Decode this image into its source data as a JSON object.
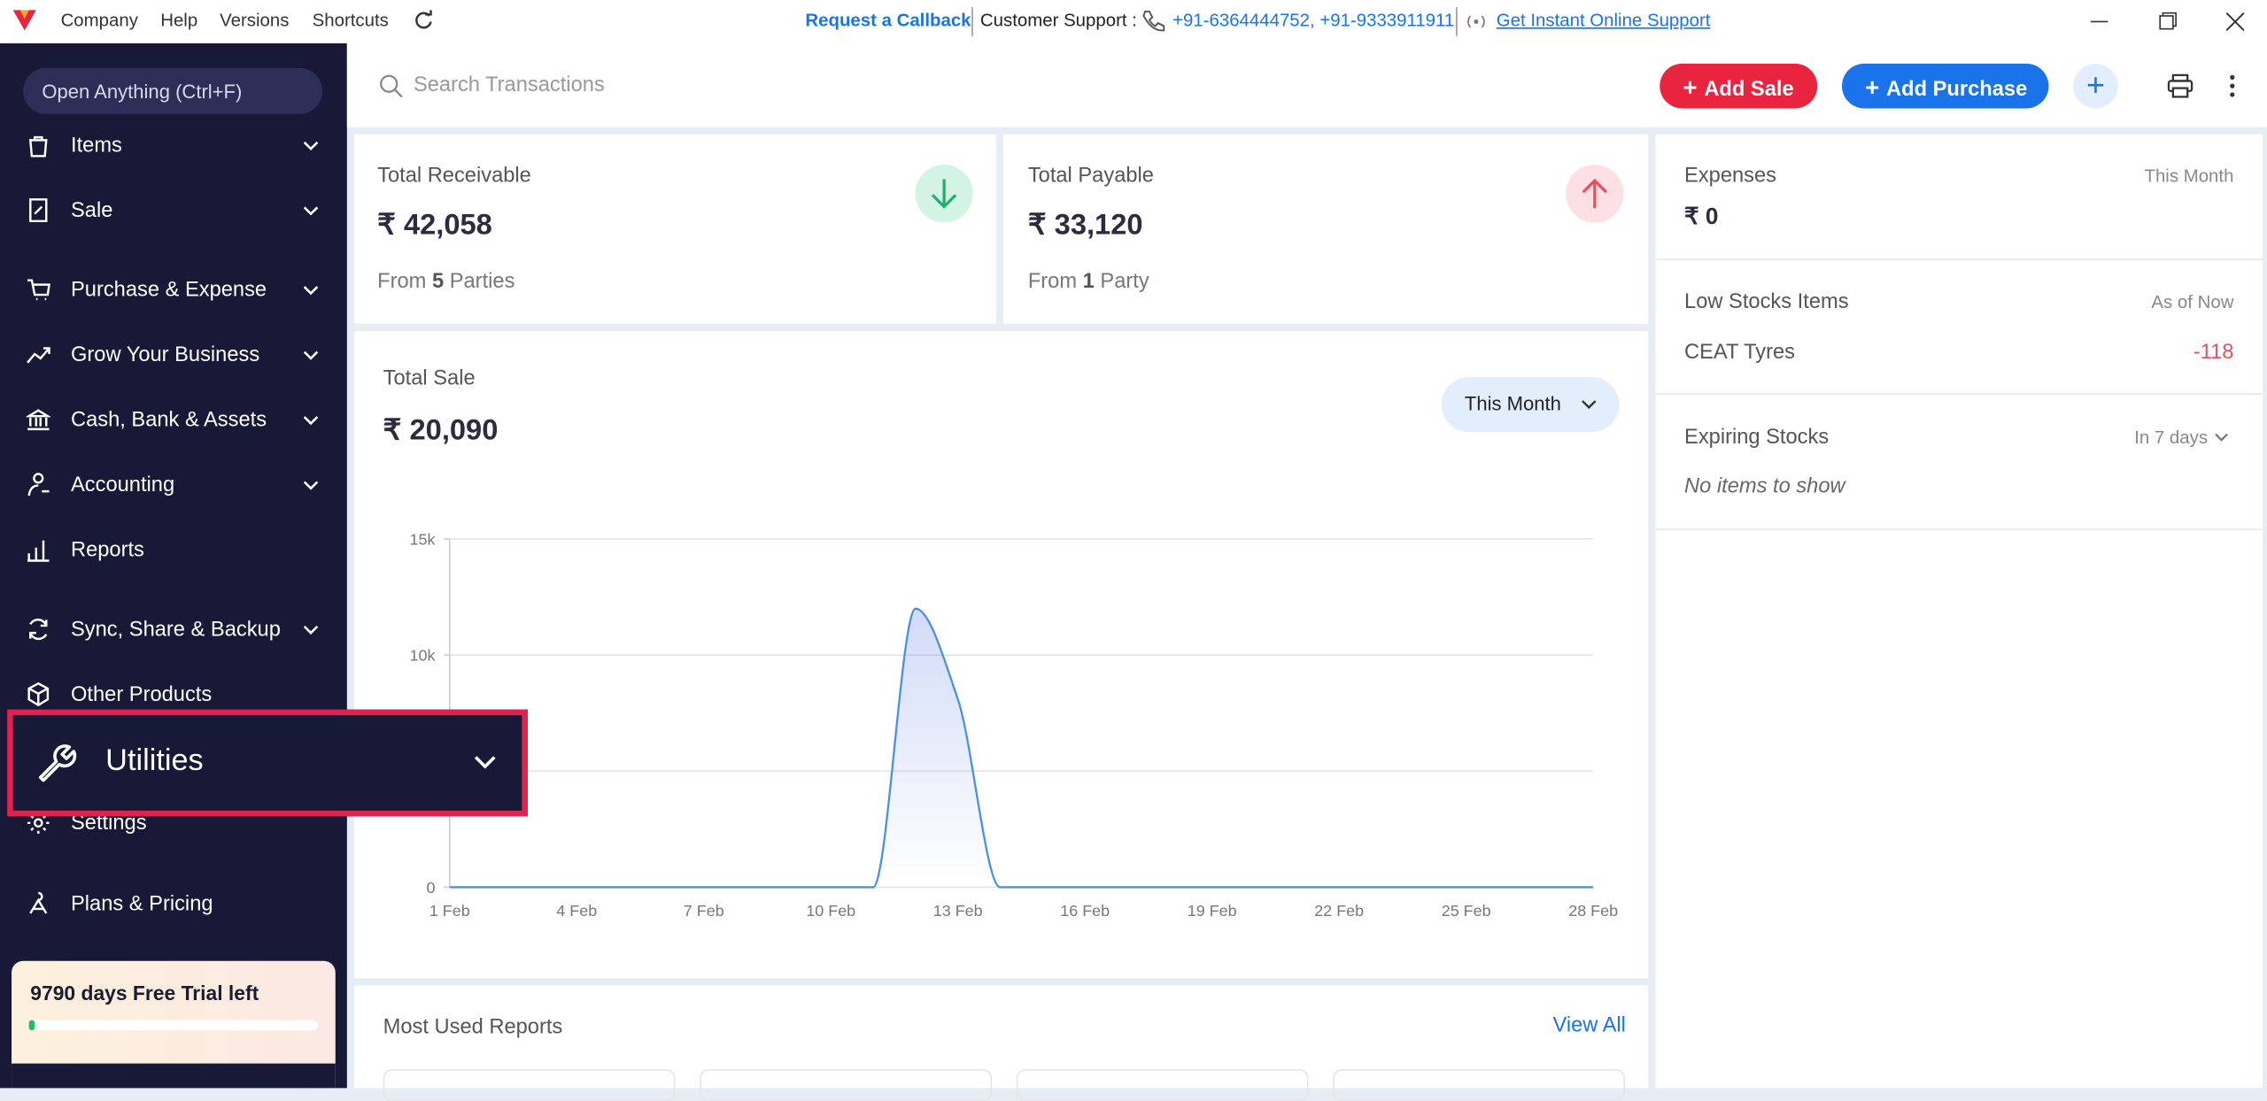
{
  "titlebar": {
    "menu": [
      "Company",
      "Help",
      "Versions",
      "Shortcuts"
    ],
    "callback": "Request a Callback",
    "support_label": "Customer Support :",
    "phones": "+91-6364444752, +91-9333911911",
    "online_support": "Get Instant Online Support"
  },
  "sidebar": {
    "search": "Open Anything (Ctrl+F)",
    "items": [
      "Items",
      "Sale",
      "Purchase & Expense",
      "Grow Your Business",
      "Cash, Bank & Assets",
      "Accounting",
      "Reports",
      "Sync, Share & Backup",
      "Other Products",
      "Settings",
      "Plans & Pricing"
    ],
    "highlight": "Utilities",
    "trial": "9790 days Free Trial left"
  },
  "topbar": {
    "search_placeholder": "Search Transactions",
    "add_sale": "Add Sale",
    "add_purchase": "Add Purchase"
  },
  "receivable": {
    "label": "Total Receivable",
    "amount": "₹ 42,058",
    "from": "From",
    "count": "5",
    "unit": "Parties"
  },
  "payable": {
    "label": "Total Payable",
    "amount": "₹ 33,120",
    "from": "From",
    "count": "1",
    "unit": "Party"
  },
  "right_panel": {
    "expenses": {
      "label": "Expenses",
      "period": "This Month",
      "amount": "₹ 0"
    },
    "low_stock": {
      "label": "Low Stocks Items",
      "as_of": "As of Now",
      "item": "CEAT Tyres",
      "qty": "-118"
    },
    "expiring": {
      "label": "Expiring Stocks",
      "period": "In 7 days",
      "empty": "No items to show"
    }
  },
  "reports": {
    "title": "Most Used Reports",
    "view_all": "View All"
  },
  "chart_data": {
    "type": "line",
    "title": "Total Sale",
    "subtitle": "₹ 20,090",
    "period": "This Month",
    "categories": [
      "1 Feb",
      null,
      null,
      "4 Feb",
      null,
      null,
      "7 Feb",
      null,
      null,
      "10 Feb",
      null,
      null,
      "13 Feb",
      null,
      null,
      "16 Feb",
      null,
      null,
      "19 Feb",
      null,
      null,
      "22 Feb",
      null,
      null,
      "25 Feb",
      null,
      null,
      "28 Feb"
    ],
    "values": [
      0,
      0,
      0,
      0,
      0,
      0,
      0,
      0,
      0,
      0,
      0,
      12000,
      8090,
      0,
      0,
      0,
      0,
      0,
      0,
      0,
      0,
      0,
      0,
      0,
      0,
      0,
      0,
      0
    ],
    "color": "#4a90e2",
    "ylim": [
      0,
      15000
    ],
    "yticks": [
      0,
      {
        "value": 10000,
        "label": "10k"
      },
      {
        "value": 15000,
        "label": "15k"
      }
    ],
    "ygrid": [
      0,
      5000,
      10000,
      15000
    ]
  }
}
